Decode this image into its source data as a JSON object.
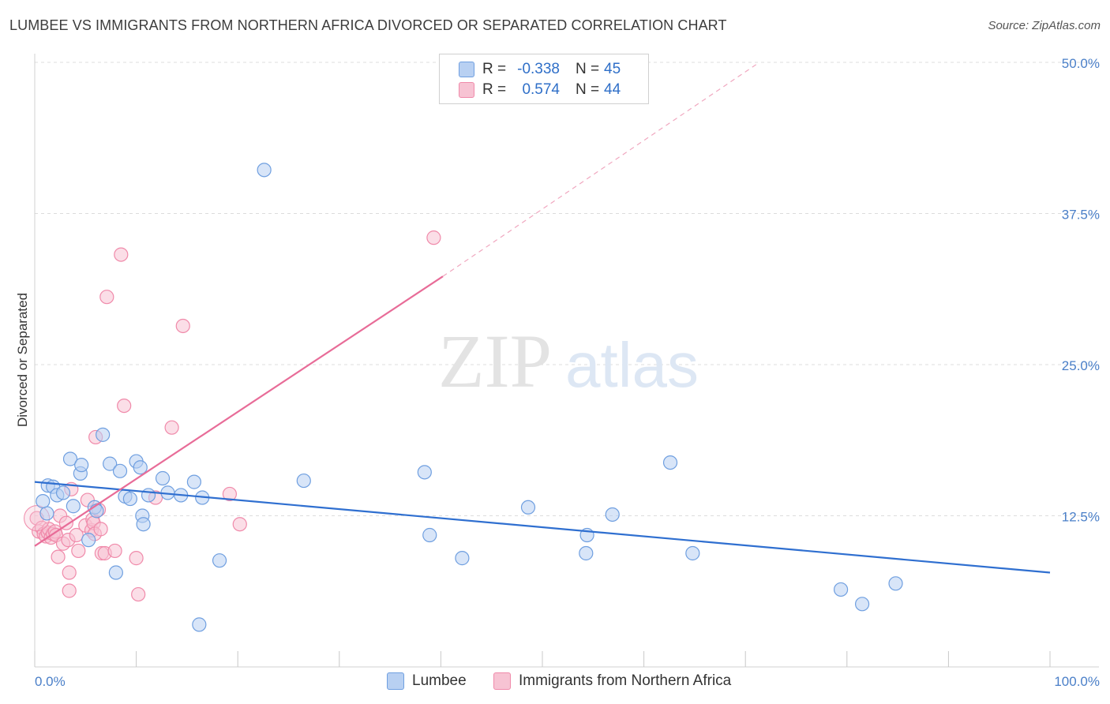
{
  "title": "LUMBEE VS IMMIGRANTS FROM NORTHERN AFRICA DIVORCED OR SEPARATED CORRELATION CHART",
  "source": "Source: ZipAtlas.com",
  "watermark": {
    "zip": "ZIP",
    "atlas": "atlas"
  },
  "legend": {
    "rows": [
      {
        "r_label": "R =",
        "r_value": "-0.338",
        "n_label": "N =",
        "n_value": "45"
      },
      {
        "r_label": "R =",
        "r_value": "0.574",
        "n_label": "N =",
        "n_value": "44"
      }
    ]
  },
  "bottom_legend": [
    "Lumbee",
    "Immigrants from Northern Africa"
  ],
  "chart_data": {
    "type": "scatter",
    "title": "LUMBEE VS IMMIGRANTS FROM NORTHERN AFRICA DIVORCED OR SEPARATED CORRELATION CHART",
    "xlabel": "",
    "ylabel": "Divorced or Separated",
    "xlim": [
      0,
      100
    ],
    "ylim": [
      0,
      50
    ],
    "x_tick_labels": [
      "0.0%",
      "100.0%"
    ],
    "y_ticks": [
      12.5,
      25.0,
      37.5,
      50.0
    ],
    "y_tick_labels": [
      "12.5%",
      "25.0%",
      "37.5%",
      "50.0%"
    ],
    "grid": true,
    "legend_placement": "top-center",
    "series": [
      {
        "name": "Lumbee",
        "color": "#6f9fe0",
        "fill": "#b8d0f2",
        "trend_color": "#2f6fd0",
        "trend": {
          "x0": 0,
          "y0": 15.3,
          "x1": 100,
          "y1": 7.8
        },
        "points": [
          [
            1.2,
            12.7
          ],
          [
            0.8,
            13.7
          ],
          [
            1.3,
            15.0
          ],
          [
            1.8,
            14.9
          ],
          [
            2.2,
            14.2
          ],
          [
            2.8,
            14.4
          ],
          [
            3.5,
            17.2
          ],
          [
            3.8,
            13.3
          ],
          [
            4.5,
            16.0
          ],
          [
            4.6,
            16.7
          ],
          [
            5.3,
            10.5
          ],
          [
            5.9,
            13.2
          ],
          [
            6.1,
            12.9
          ],
          [
            6.7,
            19.2
          ],
          [
            7.4,
            16.8
          ],
          [
            8.0,
            7.8
          ],
          [
            8.4,
            16.2
          ],
          [
            8.9,
            14.1
          ],
          [
            9.4,
            13.9
          ],
          [
            10.0,
            17.0
          ],
          [
            10.4,
            16.5
          ],
          [
            10.6,
            12.5
          ],
          [
            10.7,
            11.8
          ],
          [
            11.2,
            14.2
          ],
          [
            12.6,
            15.6
          ],
          [
            13.1,
            14.4
          ],
          [
            14.4,
            14.2
          ],
          [
            15.7,
            15.3
          ],
          [
            16.2,
            3.5
          ],
          [
            16.5,
            14.0
          ],
          [
            18.2,
            8.8
          ],
          [
            22.6,
            41.1
          ],
          [
            26.5,
            15.4
          ],
          [
            38.4,
            16.1
          ],
          [
            38.9,
            10.9
          ],
          [
            42.1,
            9.0
          ],
          [
            48.6,
            13.2
          ],
          [
            54.3,
            9.4
          ],
          [
            54.4,
            10.9
          ],
          [
            56.9,
            12.6
          ],
          [
            62.6,
            16.9
          ],
          [
            64.8,
            9.4
          ],
          [
            79.4,
            6.4
          ],
          [
            81.5,
            5.2
          ],
          [
            84.8,
            6.9
          ]
        ]
      },
      {
        "name": "Immigrants from Northern Africa",
        "color": "#f08aaa",
        "fill": "#f7c3d3",
        "trend_color": "#e86c98",
        "trend": {
          "x0": 0,
          "y0": 10.0,
          "x1": 40.2,
          "y1": 32.3
        },
        "trend_extension": {
          "x0": 40.2,
          "y0": 32.3,
          "x1": 71.2,
          "y1": 49.9
        },
        "points": [
          [
            0.2,
            12.3
          ],
          [
            0.4,
            11.2
          ],
          [
            0.7,
            11.5
          ],
          [
            0.9,
            11.0
          ],
          [
            1.1,
            10.8
          ],
          [
            1.3,
            11.1
          ],
          [
            1.4,
            11.4
          ],
          [
            1.6,
            10.7
          ],
          [
            1.8,
            11.0
          ],
          [
            2.0,
            11.2
          ],
          [
            2.1,
            10.9
          ],
          [
            2.3,
            9.1
          ],
          [
            2.5,
            12.5
          ],
          [
            2.8,
            10.2
          ],
          [
            3.1,
            11.9
          ],
          [
            3.3,
            10.5
          ],
          [
            3.4,
            6.3
          ],
          [
            3.4,
            7.8
          ],
          [
            3.6,
            14.7
          ],
          [
            4.1,
            10.9
          ],
          [
            4.3,
            9.6
          ],
          [
            5.0,
            11.7
          ],
          [
            5.2,
            13.8
          ],
          [
            5.6,
            11.3
          ],
          [
            5.7,
            12.2
          ],
          [
            5.8,
            11.9
          ],
          [
            5.9,
            11.0
          ],
          [
            6.0,
            19.0
          ],
          [
            6.3,
            13.0
          ],
          [
            6.5,
            11.4
          ],
          [
            6.6,
            9.4
          ],
          [
            6.9,
            9.4
          ],
          [
            7.1,
            30.6
          ],
          [
            7.9,
            9.6
          ],
          [
            8.5,
            34.1
          ],
          [
            8.8,
            21.6
          ],
          [
            10.0,
            9.0
          ],
          [
            10.2,
            6.0
          ],
          [
            11.9,
            14.0
          ],
          [
            13.5,
            19.8
          ],
          [
            14.6,
            28.2
          ],
          [
            19.2,
            14.3
          ],
          [
            20.2,
            11.8
          ],
          [
            39.3,
            35.5
          ]
        ]
      }
    ]
  }
}
